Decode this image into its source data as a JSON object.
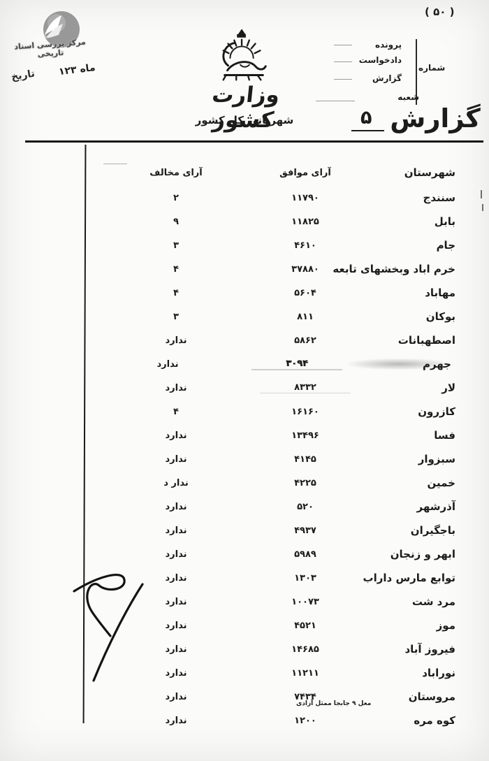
{
  "page": {
    "number_top": "( ۵۰ )"
  },
  "stamp": {
    "name": "مرکز بررسی اسناد تاریخی"
  },
  "dateline": {
    "date_label": "تاریخ",
    "date_value": "ماه ۱۲۳"
  },
  "letterhead": {
    "ministry": "وزارت کشور",
    "department": "شهربانی کل کشور",
    "emblem": "lion-and-sun-crown"
  },
  "ref_block": {
    "serial_label": "شماره",
    "items": [
      "پرونده",
      "دادخواست",
      "گزارش",
      "شعبه"
    ]
  },
  "report": {
    "title": "گزارش",
    "handwritten_number": "۵"
  },
  "table": {
    "headers": {
      "city": "شهرستان",
      "votes_yes": "آرای موافق",
      "votes_no": "آرای مخالف"
    },
    "rows": [
      {
        "city": "سنندج",
        "yes": "۱۱۷۹۰",
        "no": "۲"
      },
      {
        "city": "بابل",
        "yes": "۱۱۸۲۵",
        "no": "۹"
      },
      {
        "city": "جام",
        "yes": "۴۶۱۰",
        "no": "۳"
      },
      {
        "city": "خرم اباد وبخشهای تابعه",
        "yes": "۳۷۸۸۰",
        "no": "۴"
      },
      {
        "city": "مهاباد",
        "yes": "۵۶۰۴",
        "no": "۴"
      },
      {
        "city": "بوکان",
        "yes": "۸۱۱",
        "no": "۳"
      },
      {
        "city": "اصطهبانات",
        "yes": "۵۸۶۲",
        "no": "ندارد"
      },
      {
        "city": "جهرم",
        "yes": "۳۰۹۴",
        "no": "ندارد",
        "smudge": true
      },
      {
        "city": "لار",
        "yes": "۸۳۳۲",
        "no": "ندارد",
        "lar": true
      },
      {
        "city": "کازرون",
        "yes": "۱۶۱۶۰",
        "no": "۴"
      },
      {
        "city": "فسا",
        "yes": "۱۳۴۹۶",
        "no": "ندارد"
      },
      {
        "city": "سبزوار",
        "yes": "۴۱۴۵",
        "no": "ندارد"
      },
      {
        "city": "خمین",
        "yes": "۴۲۲۵",
        "no": "ندار د"
      },
      {
        "city": "آذرشهر",
        "yes": "۵۲۰",
        "no": "ندارد"
      },
      {
        "city": "باجگیران",
        "yes": "۴۹۳۷",
        "no": "ندارد"
      },
      {
        "city": "ابهر و زنجان",
        "yes": "۵۹۸۹",
        "no": "ندارد"
      },
      {
        "city": "توابع مارس داراب",
        "yes": "۱۳۰۳",
        "no": "ندارد"
      },
      {
        "city": "مرد شت",
        "yes": "۱۰۰۷۳",
        "no": "ندارد"
      },
      {
        "city": "موز",
        "yes": "۴۵۲۱",
        "no": "ندارد"
      },
      {
        "city": "فیروز آباد",
        "yes": "۱۴۶۸۵",
        "no": "ندارد"
      },
      {
        "city": "نوراباد",
        "yes": "۱۱۲۱۱",
        "no": "ندارد"
      },
      {
        "city": "مروستان",
        "yes": "۷۴۳۴",
        "no": "ندارد"
      },
      {
        "city": "کوه مره",
        "yes": "۱۲۰۰",
        "no": "ندارد"
      }
    ]
  },
  "footnote": {
    "text": "معل ۹ جابجا ممثل آزادی"
  },
  "colors": {
    "ink": "#1c1c1c",
    "paper": "#fbfbf9",
    "stamp_gray": "#9a9a9a"
  }
}
